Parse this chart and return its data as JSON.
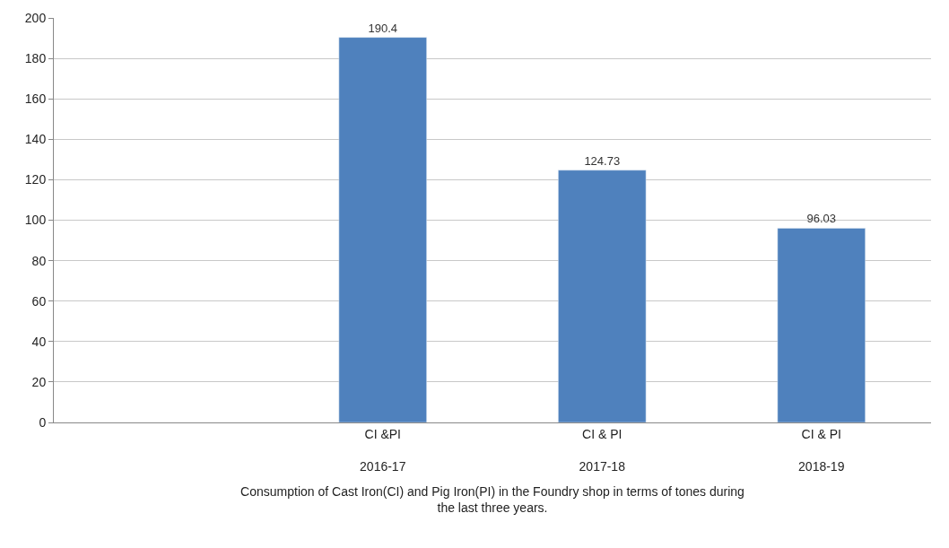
{
  "chart_data": {
    "type": "bar",
    "xlabel": "Consumption of Cast Iron(CI) and Pig Iron(PI) in the Foundry shop in terms of tones during\nthe last three years.",
    "categories": [
      null,
      "CI &PI\n\n2016-17",
      "CI & PI\n\n2017-18",
      "CI & PI\n\n2018-19"
    ],
    "values": [
      null,
      190.4,
      124.73,
      96.03
    ],
    "color": "#4f81bd",
    "ylim": [
      0,
      200
    ],
    "yticks": [
      0,
      20,
      40,
      60,
      80,
      100,
      120,
      140,
      160,
      180,
      200
    ],
    "grid": "y",
    "data_labels": true
  }
}
